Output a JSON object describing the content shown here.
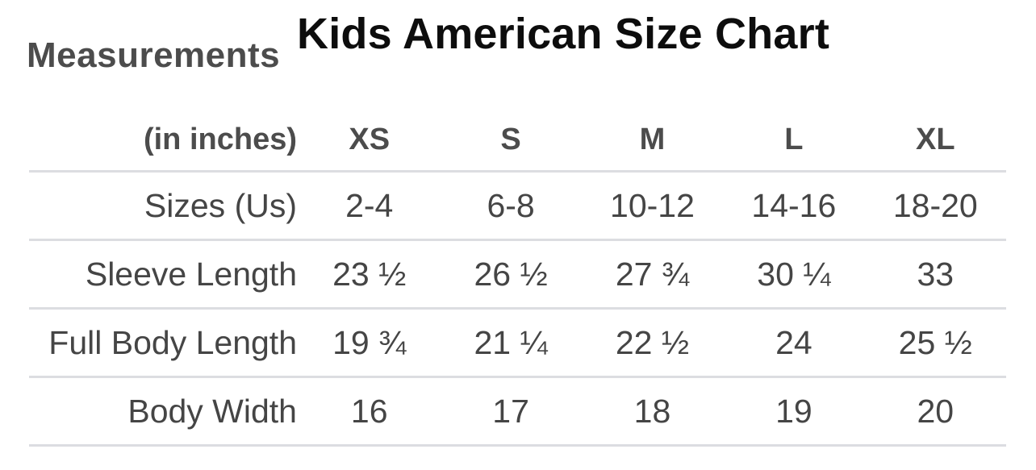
{
  "chart_data": {
    "type": "table",
    "title": "Kids American Size Chart",
    "corner_label": "Measurements",
    "corner_sublabel": "(in inches)",
    "columns": [
      "XS",
      "S",
      "M",
      "L",
      "XL"
    ],
    "rows": [
      {
        "label": "Sizes (Us)",
        "values": [
          "2-4",
          "6-8",
          "10-12",
          "14-16",
          "18-20"
        ]
      },
      {
        "label": "Sleeve Length",
        "values": [
          "23 ½",
          "26 ½",
          "27 ¾",
          "30 ¼",
          "33"
        ]
      },
      {
        "label": "Full Body Length",
        "values": [
          "19 ¾",
          "21 ¼",
          "22 ½",
          "24",
          "25 ½"
        ]
      },
      {
        "label": "Body Width",
        "values": [
          "16",
          "17",
          "18",
          "19",
          "20"
        ]
      }
    ],
    "units": "inches",
    "layout_hints": {
      "label_column_alignment": "right",
      "value_column_alignment": "center",
      "grid": "horizontal-dividers-only"
    }
  },
  "colors": {
    "title_text": "#0d0d0d",
    "header_text": "#4c4c4c",
    "cell_text": "#454545",
    "divider": "#dcdde1",
    "background": "#ffffff"
  }
}
